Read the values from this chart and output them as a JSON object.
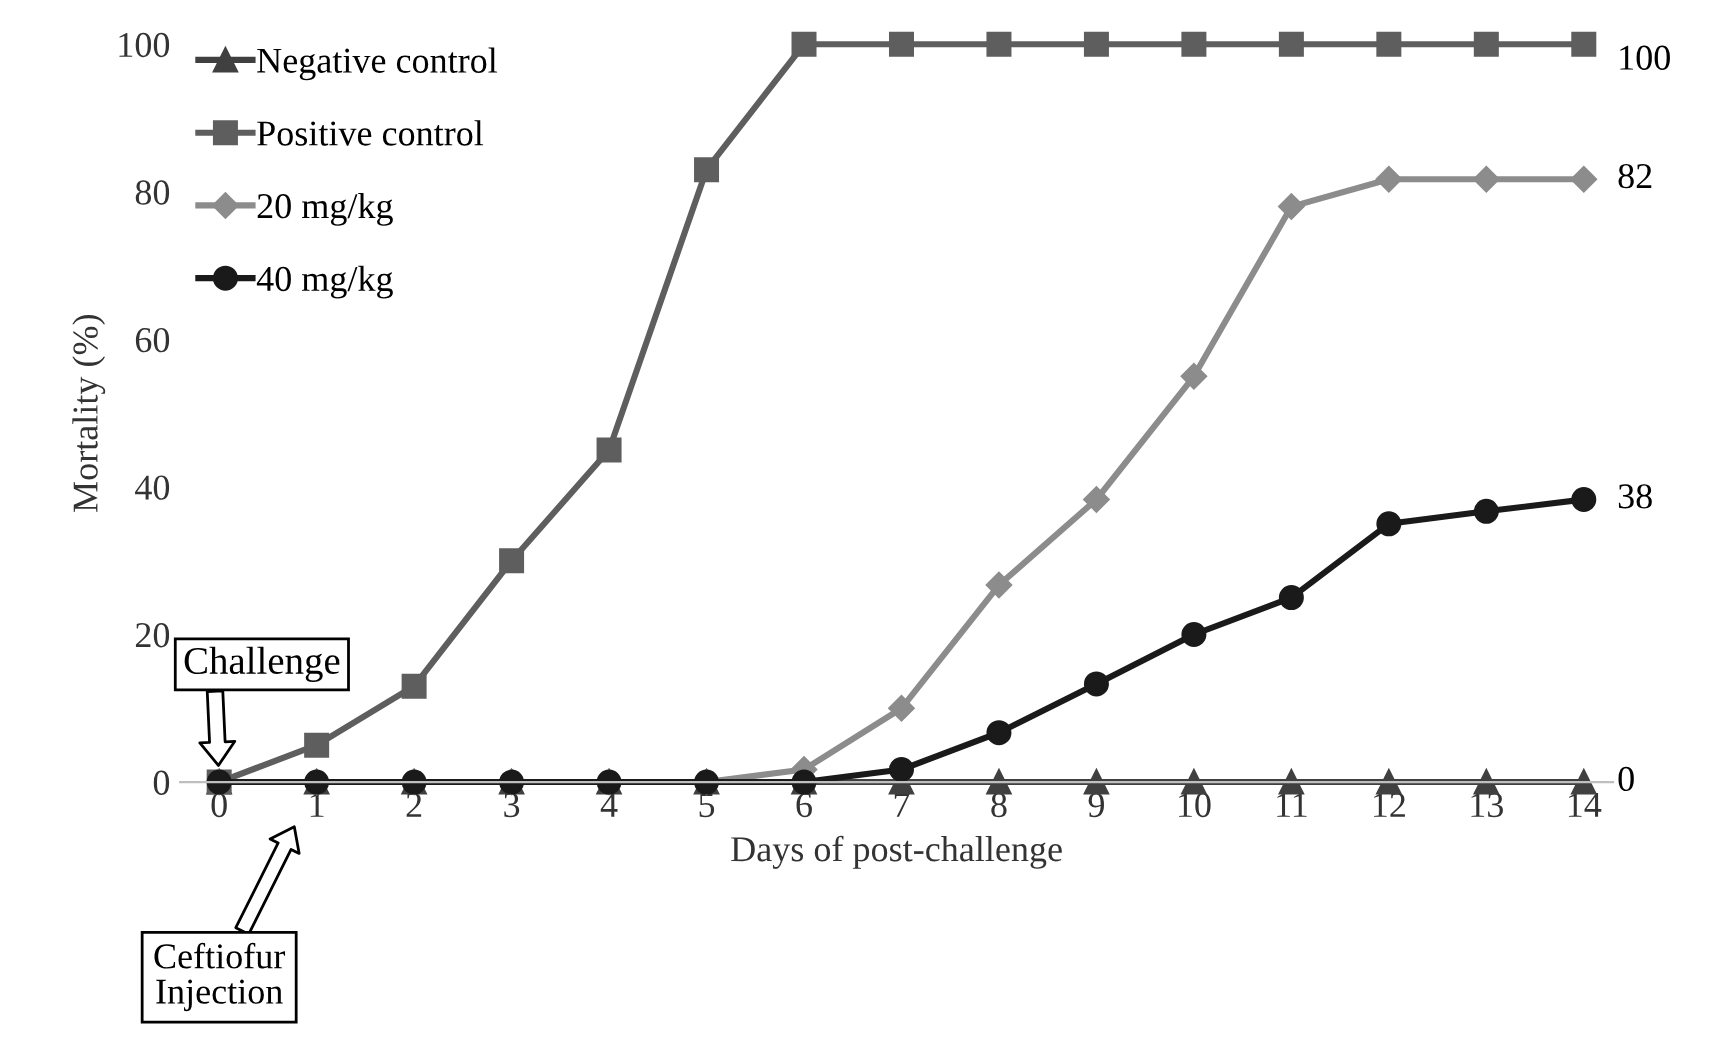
{
  "chart_data": {
    "type": "line",
    "xlabel": "Days of post-challenge",
    "ylabel": "Mortality (%)",
    "x": [
      0,
      1,
      2,
      3,
      4,
      5,
      6,
      7,
      8,
      9,
      10,
      11,
      12,
      13,
      14
    ],
    "series": [
      {
        "name": "Negative control",
        "color": "#404040",
        "marker": "triangle",
        "values": [
          0,
          0,
          0,
          0,
          0,
          0,
          0,
          0,
          0,
          0,
          0,
          0,
          0,
          0,
          0
        ],
        "value_labels": [
          null,
          null,
          null,
          null,
          null,
          null,
          null,
          null,
          null,
          null,
          null,
          null,
          null,
          null,
          "0"
        ]
      },
      {
        "name": "Positive control",
        "color": "#5e5e5e",
        "marker": "square",
        "values": [
          0,
          5,
          13,
          30,
          45,
          83,
          100,
          100,
          100,
          100,
          100,
          100,
          100,
          100,
          100
        ],
        "value_labels": [
          null,
          null,
          null,
          null,
          null,
          null,
          null,
          null,
          null,
          null,
          null,
          null,
          null,
          null,
          "100"
        ]
      },
      {
        "name": "20 mg/kg",
        "color": "#8c8c8c",
        "marker": "diamond",
        "values": [
          0,
          0,
          0,
          0,
          0,
          0,
          1.7,
          10,
          26.7,
          38.3,
          55,
          78,
          81.7,
          81.7,
          81.7
        ],
        "value_labels": [
          null,
          null,
          null,
          null,
          null,
          null,
          null,
          null,
          null,
          null,
          null,
          null,
          null,
          null,
          "82"
        ]
      },
      {
        "name": "40 mg/kg",
        "color": "#1a1a1a",
        "marker": "circle",
        "values": [
          0,
          0,
          0,
          0,
          0,
          0,
          0,
          1.7,
          6.7,
          13.3,
          20,
          25,
          35,
          36.7,
          38.3
        ],
        "value_labels": [
          null,
          null,
          null,
          null,
          null,
          null,
          null,
          null,
          null,
          null,
          null,
          null,
          null,
          null,
          "38"
        ]
      }
    ],
    "xlim": [
      -0.4,
      14.3
    ],
    "ylim": [
      0,
      100
    ],
    "xticks": [
      0,
      1,
      2,
      3,
      4,
      5,
      6,
      7,
      8,
      9,
      10,
      11,
      12,
      13,
      14
    ],
    "yticks": [
      0,
      20,
      40,
      60,
      80,
      100
    ],
    "grid": false,
    "legend": "top left",
    "line_style": "solid",
    "annotations": [
      {
        "text": "Challenge",
        "x": 0,
        "y": 0
      },
      "Ceftiofur\nInjection"
    ]
  }
}
